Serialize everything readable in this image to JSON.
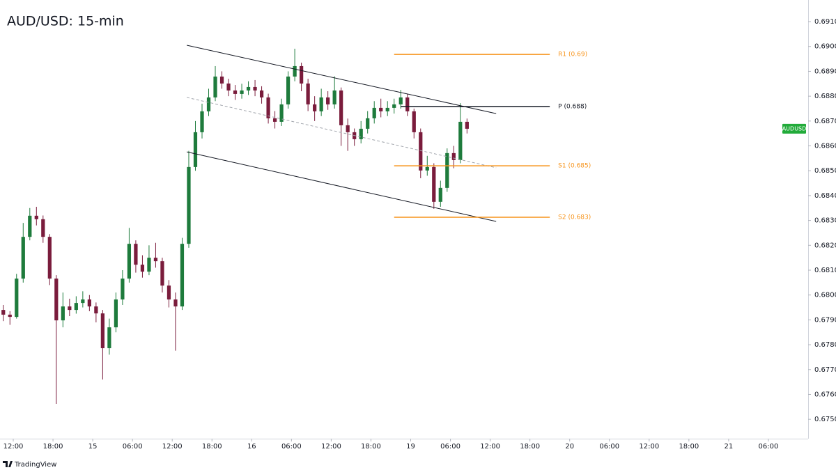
{
  "chart_data": {
    "type": "candlestick",
    "title": "AUD/USD: 15-min",
    "symbol_label": "AUDUSD",
    "footer": "TradingView",
    "up_color": "#1e7b3c",
    "down_color": "#7a1c3c",
    "x": [
      -1.5,
      -0.5,
      0.5,
      1.5,
      2.5,
      3.5,
      4.5,
      5.5,
      6.5,
      7.5,
      8.5,
      9.5,
      10.5,
      11.5,
      12.5,
      13.5,
      14.5,
      15.5,
      16.5,
      17.5,
      18.5,
      19.5,
      20.5,
      21.5,
      22.5,
      23.5,
      24.5,
      25.5,
      26.5,
      27.5,
      28.5,
      29.5,
      30.5,
      31.5,
      32.5,
      33.5,
      34.5,
      35.5,
      36.5,
      37.5,
      38.5,
      39.5,
      40.5,
      41.5,
      42.5,
      43.5,
      44.5,
      45.5,
      46.5,
      47.5,
      48.5,
      49.5,
      50.5,
      51.5,
      52.5,
      53.5,
      54.5,
      55.5,
      56.5,
      57.5,
      58.5,
      59.5,
      60.5,
      61.5,
      62.5,
      63.5,
      64.5,
      65.5,
      66.5,
      67.5,
      68.5
    ],
    "open": [
      0.6794,
      0.67921,
      0.67912,
      0.68066,
      0.68234,
      0.68319,
      0.68305,
      0.68234,
      0.68066,
      0.67898,
      0.67954,
      0.6794,
      0.67968,
      0.67982,
      0.67954,
      0.67926,
      0.67786,
      0.6787,
      0.67982,
      0.68066,
      0.68206,
      0.68122,
      0.68094,
      0.6815,
      0.68136,
      0.68038,
      0.67982,
      0.67954,
      0.68206,
      0.68515,
      0.68655,
      0.68739,
      0.68795,
      0.68879,
      0.68851,
      0.68823,
      0.68809,
      0.68823,
      0.68837,
      0.68823,
      0.68795,
      0.68711,
      0.68697,
      0.68767,
      0.68879,
      0.68921,
      0.68851,
      0.68767,
      0.68739,
      0.68795,
      0.68767,
      0.68823,
      0.68683,
      0.68655,
      0.68627,
      0.68669,
      0.68711,
      0.68753,
      0.68739,
      0.68753,
      0.68767,
      0.68795,
      0.68739,
      0.68655,
      0.68501,
      0.68515,
      0.68375,
      0.68431,
      0.68571,
      0.68543,
      0.68697
    ],
    "high": [
      0.6796,
      0.67935,
      0.68085,
      0.6829,
      0.6835,
      0.68355,
      0.6832,
      0.68245,
      0.6808,
      0.6801,
      0.67985,
      0.67995,
      0.68015,
      0.68,
      0.6797,
      0.6794,
      0.67905,
      0.6801,
      0.681,
      0.6827,
      0.6822,
      0.6816,
      0.682,
      0.6821,
      0.6815,
      0.6806,
      0.6801,
      0.6823,
      0.6858,
      0.687,
      0.6877,
      0.6883,
      0.68921,
      0.689,
      0.6887,
      0.68845,
      0.6885,
      0.6886,
      0.68865,
      0.6884,
      0.6881,
      0.6874,
      0.6879,
      0.689,
      0.68991,
      0.68935,
      0.6887,
      0.688,
      0.6883,
      0.6882,
      0.6888,
      0.68835,
      0.6871,
      0.6867,
      0.687,
      0.6874,
      0.6878,
      0.6879,
      0.6878,
      0.6879,
      0.68825,
      0.6881,
      0.6875,
      0.6867,
      0.6856,
      0.6853,
      0.6846,
      0.6859,
      0.686,
      0.68772,
      0.6871
    ],
    "low": [
      0.67895,
      0.6788,
      0.67905,
      0.6805,
      0.6822,
      0.6828,
      0.6821,
      0.6804,
      0.67562,
      0.6787,
      0.67915,
      0.67925,
      0.6795,
      0.67935,
      0.6789,
      0.6766,
      0.6776,
      0.6785,
      0.6796,
      0.6805,
      0.6809,
      0.6807,
      0.6808,
      0.6811,
      0.6801,
      0.6795,
      0.67776,
      0.6794,
      0.6819,
      0.685,
      0.6863,
      0.6872,
      0.6878,
      0.6883,
      0.688,
      0.68785,
      0.6879,
      0.68805,
      0.688,
      0.6877,
      0.6869,
      0.6867,
      0.6868,
      0.6875,
      0.6886,
      0.6882,
      0.6874,
      0.687,
      0.6872,
      0.68745,
      0.6875,
      0.686,
      0.6858,
      0.686,
      0.6861,
      0.6865,
      0.6869,
      0.68715,
      0.6872,
      0.6873,
      0.6875,
      0.6872,
      0.6863,
      0.6847,
      0.6848,
      0.68347,
      0.68355,
      0.68415,
      0.6851,
      0.6853,
      0.6865
    ],
    "close": [
      0.67921,
      0.67912,
      0.68066,
      0.68234,
      0.68319,
      0.68305,
      0.68234,
      0.68066,
      0.67898,
      0.67954,
      0.6794,
      0.67968,
      0.67982,
      0.67954,
      0.67926,
      0.67786,
      0.6787,
      0.67982,
      0.68066,
      0.68206,
      0.68122,
      0.68094,
      0.6815,
      0.68136,
      0.68038,
      0.67982,
      0.67954,
      0.68206,
      0.68515,
      0.68655,
      0.68739,
      0.68795,
      0.68879,
      0.68851,
      0.68823,
      0.68809,
      0.68823,
      0.68837,
      0.68823,
      0.68795,
      0.68711,
      0.68697,
      0.68767,
      0.68879,
      0.68921,
      0.68851,
      0.68767,
      0.68739,
      0.68795,
      0.68767,
      0.68823,
      0.68683,
      0.68655,
      0.68627,
      0.68669,
      0.68711,
      0.68753,
      0.68739,
      0.68753,
      0.68767,
      0.68795,
      0.68739,
      0.68655,
      0.68501,
      0.68515,
      0.68375,
      0.68431,
      0.68571,
      0.68543,
      0.68697,
      0.68669
    ],
    "levels": [
      {
        "label": "R1 (0.69)",
        "value": 0.68968,
        "color": "#f7931a",
        "x": [
          57.5,
          81
        ]
      },
      {
        "label": "P (0.688)",
        "value": 0.68758,
        "color": "#131722",
        "x": [
          58.5,
          81
        ]
      },
      {
        "label": "S1 (0.685)",
        "value": 0.6852,
        "color": "#f7931a",
        "x": [
          57.5,
          81
        ]
      },
      {
        "label": "S2 (0.683)",
        "value": 0.68313,
        "color": "#f7931a",
        "x": [
          57.5,
          81
        ]
      }
    ],
    "trend_lines": [
      {
        "x": [
          26.2,
          72.9
        ],
        "y": [
          0.69005,
          0.6873
        ],
        "color": "#131722",
        "dashed": false
      },
      {
        "x": [
          26.2,
          72.9
        ],
        "y": [
          0.68795,
          0.68512
        ],
        "color": "#a0a4ab",
        "dashed": true
      },
      {
        "x": [
          26.2,
          72.9
        ],
        "y": [
          0.68576,
          0.68296
        ],
        "color": "#131722",
        "dashed": false
      }
    ],
    "xlim": [
      -2,
      120
    ],
    "ylim": [
      0.67422,
      0.69187
    ],
    "xticks": [
      {
        "value": 0,
        "label": "12:00"
      },
      {
        "value": 6,
        "label": "18:00"
      },
      {
        "value": 12,
        "label": "15"
      },
      {
        "value": 18,
        "label": "06:00"
      },
      {
        "value": 24,
        "label": "12:00"
      },
      {
        "value": 30,
        "label": "18:00"
      },
      {
        "value": 36,
        "label": "16"
      },
      {
        "value": 42,
        "label": "06:00"
      },
      {
        "value": 48,
        "label": "12:00"
      },
      {
        "value": 54,
        "label": "18:00"
      },
      {
        "value": 60,
        "label": "19"
      },
      {
        "value": 66,
        "label": "06:00"
      },
      {
        "value": 72,
        "label": "12:00"
      },
      {
        "value": 78,
        "label": "18:00"
      },
      {
        "value": 84,
        "label": "20"
      },
      {
        "value": 90,
        "label": "06:00"
      },
      {
        "value": 96,
        "label": "12:00"
      },
      {
        "value": 102,
        "label": "18:00"
      },
      {
        "value": 108,
        "label": "21"
      },
      {
        "value": 114,
        "label": "06:00"
      }
    ],
    "yticks": [
      {
        "value": 0.675,
        "label": "0.67500"
      },
      {
        "value": 0.676,
        "label": "0.67600"
      },
      {
        "value": 0.677,
        "label": "0.67700"
      },
      {
        "value": 0.678,
        "label": "0.67800"
      },
      {
        "value": 0.679,
        "label": "0.67900"
      },
      {
        "value": 0.68,
        "label": "0.68000"
      },
      {
        "value": 0.681,
        "label": "0.68100"
      },
      {
        "value": 0.682,
        "label": "0.68200"
      },
      {
        "value": 0.683,
        "label": "0.68300"
      },
      {
        "value": 0.684,
        "label": "0.68400"
      },
      {
        "value": 0.685,
        "label": "0.68500"
      },
      {
        "value": 0.686,
        "label": "0.68600"
      },
      {
        "value": 0.687,
        "label": "0.68700"
      },
      {
        "value": 0.688,
        "label": "0.68800"
      },
      {
        "value": 0.689,
        "label": "0.68900"
      },
      {
        "value": 0.69,
        "label": "0.69000"
      },
      {
        "value": 0.691,
        "label": "0.69100"
      }
    ]
  }
}
